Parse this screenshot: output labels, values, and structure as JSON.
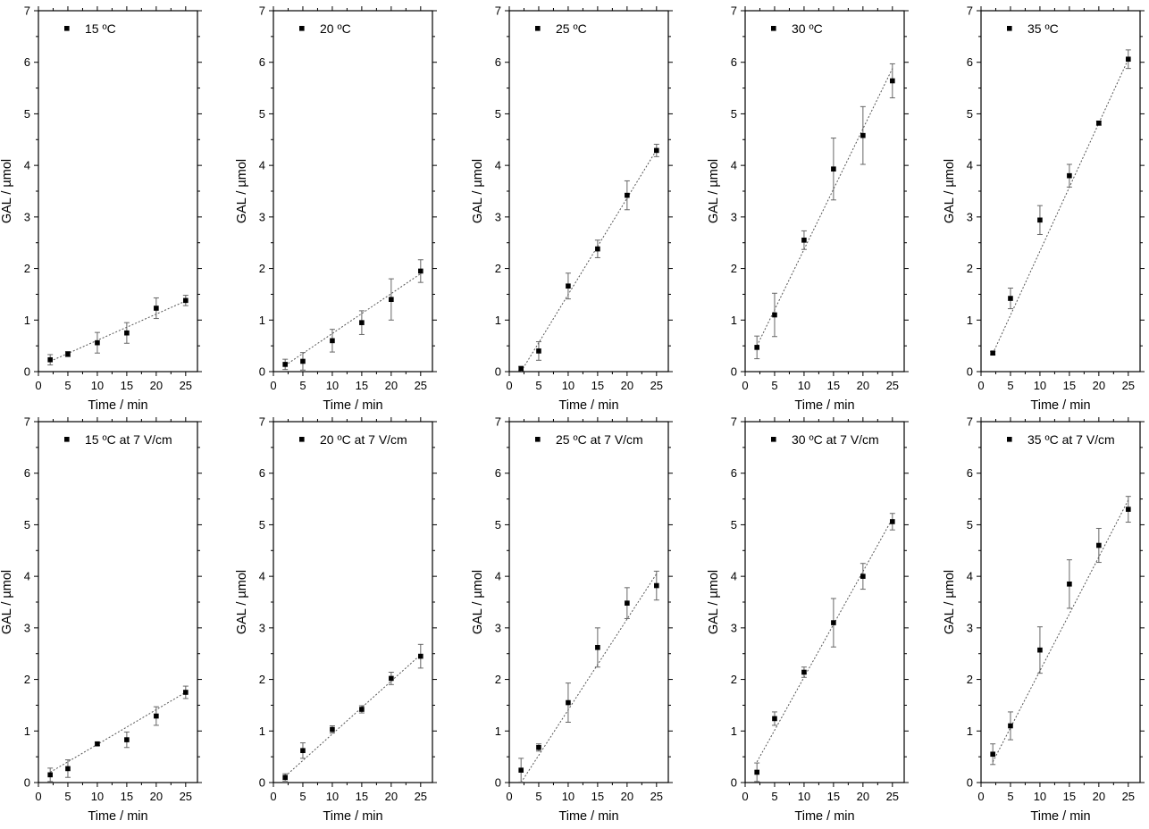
{
  "chart_data": [
    {
      "type": "scatter",
      "legend": "15 ºC",
      "xlabel": "Time / min",
      "ylabel": "GAL / µmol",
      "xlim": [
        0,
        27
      ],
      "ylim": [
        0,
        7
      ],
      "xticks": [
        0,
        5,
        10,
        15,
        20,
        25
      ],
      "yticks": [
        0,
        1,
        2,
        3,
        4,
        5,
        6,
        7
      ],
      "x": [
        2,
        5,
        10,
        15,
        20,
        25
      ],
      "y": [
        0.23,
        0.34,
        0.56,
        0.75,
        1.23,
        1.38
      ],
      "err": [
        0.1,
        0.05,
        0.2,
        0.2,
        0.2,
        0.1
      ],
      "fit": {
        "x": [
          2,
          25
        ],
        "y": [
          0.2,
          1.37
        ]
      }
    },
    {
      "type": "scatter",
      "legend": "20 ºC",
      "xlabel": "Time / min",
      "ylabel": "GAL / µmol",
      "xlim": [
        0,
        27
      ],
      "ylim": [
        0,
        7
      ],
      "xticks": [
        0,
        5,
        10,
        15,
        20,
        25
      ],
      "yticks": [
        0,
        1,
        2,
        3,
        4,
        5,
        6,
        7
      ],
      "x": [
        2,
        5,
        10,
        15,
        20,
        25
      ],
      "y": [
        0.14,
        0.2,
        0.6,
        0.95,
        1.4,
        1.95
      ],
      "err": [
        0.1,
        0.17,
        0.22,
        0.23,
        0.4,
        0.22
      ],
      "fit": {
        "x": [
          2,
          25
        ],
        "y": [
          0.12,
          1.9
        ]
      }
    },
    {
      "type": "scatter",
      "legend": "25 ºC",
      "xlabel": "Time / min",
      "ylabel": "GAL / µmol",
      "xlim": [
        0,
        27
      ],
      "ylim": [
        0,
        7
      ],
      "xticks": [
        0,
        5,
        10,
        15,
        20,
        25
      ],
      "yticks": [
        0,
        1,
        2,
        3,
        4,
        5,
        6,
        7
      ],
      "x": [
        2,
        5,
        10,
        15,
        20,
        25
      ],
      "y": [
        0.06,
        0.4,
        1.66,
        2.38,
        3.42,
        4.29
      ],
      "err": [
        0.04,
        0.18,
        0.25,
        0.17,
        0.28,
        0.12
      ],
      "fit": {
        "x": [
          2,
          25
        ],
        "y": [
          0.0,
          4.3
        ]
      }
    },
    {
      "type": "scatter",
      "legend": "30 ºC",
      "xlabel": "Time / min",
      "ylabel": "GAL / µmol",
      "xlim": [
        0,
        27
      ],
      "ylim": [
        0,
        7
      ],
      "xticks": [
        0,
        5,
        10,
        15,
        20,
        25
      ],
      "yticks": [
        0,
        1,
        2,
        3,
        4,
        5,
        6,
        7
      ],
      "x": [
        2,
        5,
        10,
        15,
        20,
        25
      ],
      "y": [
        0.47,
        1.1,
        2.55,
        3.93,
        4.58,
        5.64
      ],
      "err": [
        0.22,
        0.42,
        0.18,
        0.6,
        0.56,
        0.33
      ],
      "fit": {
        "x": [
          2,
          25
        ],
        "y": [
          0.5,
          5.88
        ]
      }
    },
    {
      "type": "scatter",
      "legend": "35 ºC",
      "xlabel": "Time / min",
      "ylabel": "GAL / µmol",
      "xlim": [
        0,
        27
      ],
      "ylim": [
        0,
        7
      ],
      "xticks": [
        0,
        5,
        10,
        15,
        20,
        25
      ],
      "yticks": [
        0,
        1,
        2,
        3,
        4,
        5,
        6,
        7
      ],
      "x": [
        2,
        5,
        10,
        15,
        20,
        25
      ],
      "y": [
        0.36,
        1.42,
        2.94,
        3.8,
        4.82,
        6.06
      ],
      "err": [
        0.03,
        0.2,
        0.28,
        0.22,
        0.04,
        0.18
      ],
      "fit": {
        "x": [
          2,
          25
        ],
        "y": [
          0.35,
          6.06
        ]
      }
    },
    {
      "type": "scatter",
      "legend": "15 ºC at 7 V/cm",
      "xlabel": "Time / min",
      "ylabel": "GAL / µmol",
      "xlim": [
        0,
        27
      ],
      "ylim": [
        0,
        7
      ],
      "xticks": [
        0,
        5,
        10,
        15,
        20,
        25
      ],
      "yticks": [
        0,
        1,
        2,
        3,
        4,
        5,
        6,
        7
      ],
      "x": [
        2,
        5,
        10,
        15,
        20,
        25
      ],
      "y": [
        0.15,
        0.27,
        0.75,
        0.83,
        1.29,
        1.75
      ],
      "err": [
        0.13,
        0.17,
        0.03,
        0.15,
        0.18,
        0.12
      ],
      "fit": {
        "x": [
          2,
          25
        ],
        "y": [
          0.2,
          1.75
        ]
      }
    },
    {
      "type": "scatter",
      "legend": "20 ºC at 7 V/cm",
      "xlabel": "Time / min",
      "ylabel": "GAL / µmol",
      "xlim": [
        0,
        27
      ],
      "ylim": [
        0,
        7
      ],
      "xticks": [
        0,
        5,
        10,
        15,
        20,
        25
      ],
      "yticks": [
        0,
        1,
        2,
        3,
        4,
        5,
        6,
        7
      ],
      "x": [
        2,
        5,
        10,
        15,
        20,
        25
      ],
      "y": [
        0.1,
        0.62,
        1.03,
        1.42,
        2.02,
        2.45
      ],
      "err": [
        0.07,
        0.15,
        0.07,
        0.07,
        0.12,
        0.23
      ],
      "fit": {
        "x": [
          2,
          25
        ],
        "y": [
          0.12,
          2.48
        ]
      }
    },
    {
      "type": "scatter",
      "legend": "25 ºC at 7 V/cm",
      "xlabel": "Time / min",
      "ylabel": "GAL / µmol",
      "xlim": [
        0,
        27
      ],
      "ylim": [
        0,
        7
      ],
      "xticks": [
        0,
        5,
        10,
        15,
        20,
        25
      ],
      "yticks": [
        0,
        1,
        2,
        3,
        4,
        5,
        6,
        7
      ],
      "x": [
        2,
        5,
        10,
        15,
        20,
        25
      ],
      "y": [
        0.24,
        0.68,
        1.55,
        2.62,
        3.48,
        3.82
      ],
      "err": [
        0.23,
        0.07,
        0.38,
        0.38,
        0.3,
        0.28
      ],
      "fit": {
        "x": [
          2,
          25
        ],
        "y": [
          0.0,
          4.05
        ]
      }
    },
    {
      "type": "scatter",
      "legend": "30 ºC at 7 V/cm",
      "xlabel": "Time / min",
      "ylabel": "GAL / µmol",
      "xlim": [
        0,
        27
      ],
      "ylim": [
        0,
        7
      ],
      "xticks": [
        0,
        5,
        10,
        15,
        20,
        25
      ],
      "yticks": [
        0,
        1,
        2,
        3,
        4,
        5,
        6,
        7
      ],
      "x": [
        2,
        5,
        10,
        15,
        20,
        25
      ],
      "y": [
        0.2,
        1.24,
        2.14,
        3.1,
        4.0,
        5.06
      ],
      "err": [
        0.18,
        0.13,
        0.1,
        0.47,
        0.25,
        0.16
      ],
      "fit": {
        "x": [
          2,
          25
        ],
        "y": [
          0.4,
          5.12
        ]
      }
    },
    {
      "type": "scatter",
      "legend": "35 ºC at 7 V/cm",
      "xlabel": "Time / min",
      "ylabel": "GAL / µmol",
      "xlim": [
        0,
        27
      ],
      "ylim": [
        0,
        7
      ],
      "xticks": [
        0,
        5,
        10,
        15,
        20,
        25
      ],
      "yticks": [
        0,
        1,
        2,
        3,
        4,
        5,
        6,
        7
      ],
      "x": [
        2,
        5,
        10,
        15,
        20,
        25
      ],
      "y": [
        0.55,
        1.1,
        2.57,
        3.85,
        4.6,
        5.3
      ],
      "err": [
        0.2,
        0.27,
        0.45,
        0.47,
        0.33,
        0.25
      ],
      "fit": {
        "x": [
          2,
          25
        ],
        "y": [
          0.4,
          5.48
        ]
      }
    }
  ]
}
